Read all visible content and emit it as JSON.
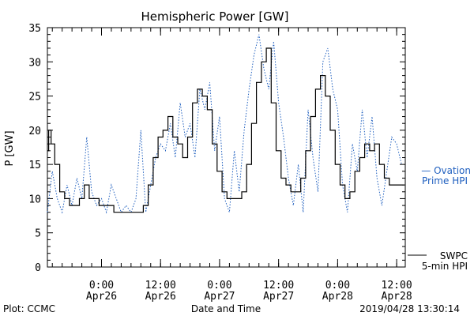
{
  "chart_data": {
    "type": "line",
    "title": "Hemispheric Power [GW]",
    "ylabel": "P [GW]",
    "xlabel": "Date and Time",
    "ylim": [
      0,
      35
    ],
    "yticks": [
      0,
      5,
      10,
      15,
      20,
      25,
      30,
      35
    ],
    "xlim": [
      "2019-04-25 13:00",
      "2019-04-28 13:45"
    ],
    "x_ticks": [
      {
        "x": "2019-04-26 00:00",
        "line1": "0:00",
        "line2": "Apr26"
      },
      {
        "x": "2019-04-26 12:00",
        "line1": "12:00",
        "line2": "Apr26"
      },
      {
        "x": "2019-04-27 00:00",
        "line1": "0:00",
        "line2": "Apr27"
      },
      {
        "x": "2019-04-27 12:00",
        "line1": "12:00",
        "line2": "Apr27"
      },
      {
        "x": "2019-04-28 00:00",
        "line1": "0:00",
        "line2": "Apr28"
      },
      {
        "x": "2019-04-28 12:00",
        "line1": "12:00",
        "line2": "Apr28"
      }
    ],
    "series": [
      {
        "name": "SWPC 5-min HPI",
        "color": "#000000",
        "style": "solid",
        "x": [
          "2019-04-25 13:00",
          "2019-04-25 13:30",
          "2019-04-25 14:00",
          "2019-04-25 15:00",
          "2019-04-25 16:00",
          "2019-04-25 17:00",
          "2019-04-25 18:00",
          "2019-04-25 19:00",
          "2019-04-25 20:00",
          "2019-04-25 21:00",
          "2019-04-25 22:00",
          "2019-04-25 23:00",
          "2019-04-26 00:00",
          "2019-04-26 01:00",
          "2019-04-26 02:00",
          "2019-04-26 03:00",
          "2019-04-26 04:00",
          "2019-04-26 05:00",
          "2019-04-26 06:00",
          "2019-04-26 07:00",
          "2019-04-26 08:00",
          "2019-04-26 09:00",
          "2019-04-26 10:00",
          "2019-04-26 11:00",
          "2019-04-26 12:00",
          "2019-04-26 13:00",
          "2019-04-26 14:00",
          "2019-04-26 15:00",
          "2019-04-26 16:00",
          "2019-04-26 17:00",
          "2019-04-26 18:00",
          "2019-04-26 19:00",
          "2019-04-26 20:00",
          "2019-04-26 21:00",
          "2019-04-26 22:00",
          "2019-04-26 23:00",
          "2019-04-27 00:00",
          "2019-04-27 01:00",
          "2019-04-27 02:00",
          "2019-04-27 03:00",
          "2019-04-27 04:00",
          "2019-04-27 05:00",
          "2019-04-27 06:00",
          "2019-04-27 07:00",
          "2019-04-27 08:00",
          "2019-04-27 09:00",
          "2019-04-27 10:00",
          "2019-04-27 11:00",
          "2019-04-27 12:00",
          "2019-04-27 13:00",
          "2019-04-27 14:00",
          "2019-04-27 15:00",
          "2019-04-27 16:00",
          "2019-04-27 17:00",
          "2019-04-27 18:00",
          "2019-04-27 19:00",
          "2019-04-27 20:00",
          "2019-04-27 21:00",
          "2019-04-27 22:00",
          "2019-04-27 23:00",
          "2019-04-28 00:00",
          "2019-04-28 01:00",
          "2019-04-28 02:00",
          "2019-04-28 03:00",
          "2019-04-28 04:00",
          "2019-04-28 05:00",
          "2019-04-28 06:00",
          "2019-04-28 07:00",
          "2019-04-28 08:00",
          "2019-04-28 09:00",
          "2019-04-28 10:00",
          "2019-04-28 11:00",
          "2019-04-28 12:00",
          "2019-04-28 13:00",
          "2019-04-28 13:30"
        ],
        "y": [
          17,
          20,
          18,
          15,
          11,
          10,
          9,
          9,
          10,
          12,
          10,
          10,
          9,
          9,
          9,
          8,
          8,
          8,
          8,
          8,
          8,
          9,
          12,
          16,
          19,
          20,
          22,
          19,
          18,
          16,
          19,
          24,
          26,
          25,
          23,
          18,
          14,
          11,
          10,
          10,
          10,
          11,
          15,
          21,
          27,
          30,
          32,
          24,
          17,
          13,
          12,
          11,
          11,
          13,
          17,
          22,
          26,
          28,
          25,
          20,
          15,
          12,
          10,
          11,
          14,
          16,
          18,
          17,
          18,
          15,
          13,
          12,
          12,
          12,
          12
        ]
      },
      {
        "name": "Ovation Prime HPI",
        "color": "#1f5fbf",
        "style": "dotted",
        "x": [
          "2019-04-25 13:00",
          "2019-04-25 14:00",
          "2019-04-25 15:00",
          "2019-04-25 16:00",
          "2019-04-25 17:00",
          "2019-04-25 18:00",
          "2019-04-25 19:00",
          "2019-04-25 20:00",
          "2019-04-25 21:00",
          "2019-04-25 22:00",
          "2019-04-25 23:00",
          "2019-04-26 00:00",
          "2019-04-26 01:00",
          "2019-04-26 02:00",
          "2019-04-26 03:00",
          "2019-04-26 04:00",
          "2019-04-26 05:00",
          "2019-04-26 06:00",
          "2019-04-26 07:00",
          "2019-04-26 08:00",
          "2019-04-26 09:00",
          "2019-04-26 10:00",
          "2019-04-26 11:00",
          "2019-04-26 12:00",
          "2019-04-26 13:00",
          "2019-04-26 14:00",
          "2019-04-26 15:00",
          "2019-04-26 16:00",
          "2019-04-26 17:00",
          "2019-04-26 18:00",
          "2019-04-26 19:00",
          "2019-04-26 20:00",
          "2019-04-26 21:00",
          "2019-04-26 22:00",
          "2019-04-26 23:00",
          "2019-04-27 00:00",
          "2019-04-27 01:00",
          "2019-04-27 02:00",
          "2019-04-27 03:00",
          "2019-04-27 04:00",
          "2019-04-27 05:00",
          "2019-04-27 06:00",
          "2019-04-27 07:00",
          "2019-04-27 08:00",
          "2019-04-27 09:00",
          "2019-04-27 10:00",
          "2019-04-27 11:00",
          "2019-04-27 12:00",
          "2019-04-27 13:00",
          "2019-04-27 14:00",
          "2019-04-27 15:00",
          "2019-04-27 16:00",
          "2019-04-27 17:00",
          "2019-04-27 18:00",
          "2019-04-27 19:00",
          "2019-04-27 20:00",
          "2019-04-27 21:00",
          "2019-04-27 22:00",
          "2019-04-27 23:00",
          "2019-04-28 00:00",
          "2019-04-28 01:00",
          "2019-04-28 02:00",
          "2019-04-28 03:00",
          "2019-04-28 04:00",
          "2019-04-28 05:00",
          "2019-04-28 06:00",
          "2019-04-28 07:00",
          "2019-04-28 08:00",
          "2019-04-28 09:00",
          "2019-04-28 10:00",
          "2019-04-28 11:00",
          "2019-04-28 12:00",
          "2019-04-28 13:00"
        ],
        "y": [
          8,
          14,
          10,
          8,
          12,
          9,
          13,
          10,
          19,
          11,
          9,
          10,
          8,
          12,
          10,
          8,
          9,
          8,
          10,
          20,
          8,
          12,
          16,
          18,
          17,
          21,
          16,
          24,
          19,
          21,
          16,
          26,
          23,
          27,
          17,
          22,
          10,
          8,
          17,
          11,
          20,
          26,
          31,
          34,
          29,
          26,
          33,
          24,
          19,
          13,
          9,
          15,
          8,
          23,
          16,
          11,
          30,
          32,
          26,
          23,
          12,
          8,
          18,
          14,
          23,
          16,
          22,
          13,
          9,
          14,
          19,
          18,
          15
        ]
      }
    ],
    "legend": [
      {
        "line1": "— Ovation",
        "line2": "Prime HPI",
        "color": "#1f5fbf",
        "placement": "right"
      },
      {
        "line1": "SWPC",
        "line2": "5-min HPI",
        "color": "#000000",
        "placement": "bottom-right"
      }
    ],
    "footer": {
      "left": "Plot: CCMC",
      "right": "2019/04/28 13:30:14"
    }
  }
}
